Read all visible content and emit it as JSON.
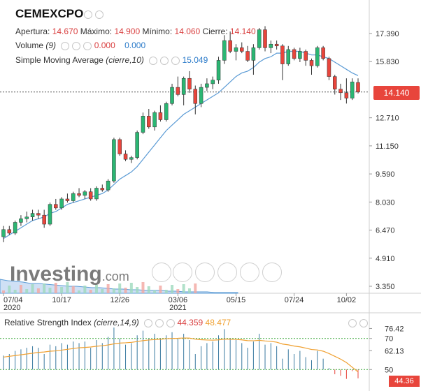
{
  "header": {
    "symbol": "CEMEXCPO",
    "open_label": "Apertura:",
    "open": "14.670",
    "high_label": "Máximo:",
    "high": "14.900",
    "low_label": "Mínimo:",
    "low": "14.060",
    "close_label": "Cierre:",
    "close": "14.140",
    "volume_label": "Volume",
    "volume_param": "(9)",
    "volume_v1": "0.000",
    "volume_v2": "0.000",
    "sma_label": "Simple Moving Average",
    "sma_param": "(cierre,10)",
    "sma_value": "15.049"
  },
  "watermark": {
    "brand": "Investing",
    "suffix": ".com"
  },
  "price_label": "14.140",
  "rsi": {
    "label": "Relative Strength Index",
    "param": "(cierre,14,9)",
    "value": "44.359",
    "signal": "48.477",
    "axis_label": "44.36"
  },
  "colors": {
    "up": "#2bb673",
    "down": "#e8453c",
    "sma": "#5b9bd5",
    "rsi_line": "#f0a030",
    "grid_dash": "#3aa83a"
  },
  "icons": [
    "eye-icon",
    "gear-icon",
    "close-icon",
    "chevron-down-icon"
  ],
  "chart_data": {
    "type": "candlestick",
    "y_ticks": [
      "17.390",
      "15.830",
      "12.710",
      "11.150",
      "9.590",
      "8.030",
      "6.470",
      "4.910",
      "3.350"
    ],
    "ylim": [
      3.35,
      17.39
    ],
    "x_ticks": [
      {
        "label": "07/04",
        "year": "2020"
      },
      {
        "label": "10/17",
        "year": ""
      },
      {
        "label": "12/26",
        "year": ""
      },
      {
        "label": "03/06",
        "year": "2021"
      },
      {
        "label": "05/15",
        "year": ""
      },
      {
        "label": "07/24",
        "year": ""
      },
      {
        "label": "10/02",
        "year": ""
      }
    ],
    "candles": [
      [
        6.1,
        6.7,
        5.8,
        6.5
      ],
      [
        6.5,
        6.7,
        6.2,
        6.3
      ],
      [
        6.3,
        7.0,
        6.2,
        6.9
      ],
      [
        6.9,
        7.3,
        6.7,
        7.1
      ],
      [
        7.1,
        7.5,
        6.9,
        7.2
      ],
      [
        7.2,
        7.6,
        7.0,
        7.4
      ],
      [
        7.4,
        7.6,
        7.1,
        7.3
      ],
      [
        7.3,
        7.6,
        6.6,
        6.8
      ],
      [
        6.8,
        8.0,
        6.7,
        7.9
      ],
      [
        7.9,
        8.2,
        7.6,
        7.7
      ],
      [
        7.7,
        8.3,
        7.6,
        8.2
      ],
      [
        8.2,
        8.5,
        8.0,
        8.1
      ],
      [
        8.1,
        8.6,
        8.0,
        8.5
      ],
      [
        8.5,
        8.8,
        8.3,
        8.4
      ],
      [
        8.4,
        8.7,
        8.2,
        8.6
      ],
      [
        8.6,
        8.8,
        8.1,
        8.2
      ],
      [
        8.2,
        8.9,
        8.1,
        8.8
      ],
      [
        8.8,
        9.0,
        8.6,
        8.7
      ],
      [
        8.7,
        9.3,
        8.6,
        9.2
      ],
      [
        9.2,
        11.6,
        9.1,
        11.5
      ],
      [
        11.5,
        11.6,
        10.6,
        10.7
      ],
      [
        10.7,
        10.9,
        10.3,
        10.4
      ],
      [
        10.4,
        10.6,
        10.2,
        10.5
      ],
      [
        10.5,
        12.0,
        10.4,
        11.9
      ],
      [
        11.9,
        13.0,
        11.8,
        12.8
      ],
      [
        12.8,
        13.2,
        12.1,
        12.2
      ],
      [
        12.2,
        13.1,
        12.0,
        13.0
      ],
      [
        13.0,
        13.4,
        12.5,
        12.6
      ],
      [
        12.6,
        13.6,
        12.5,
        13.5
      ],
      [
        13.5,
        14.6,
        13.4,
        14.4
      ],
      [
        14.4,
        15.0,
        13.9,
        14.0
      ],
      [
        14.0,
        15.0,
        13.4,
        14.9
      ],
      [
        14.9,
        15.3,
        14.1,
        14.3
      ],
      [
        14.3,
        14.5,
        12.9,
        13.5
      ],
      [
        13.5,
        14.6,
        13.3,
        14.4
      ],
      [
        14.4,
        14.9,
        14.2,
        14.6
      ],
      [
        14.6,
        15.0,
        14.3,
        14.8
      ],
      [
        14.8,
        16.1,
        14.6,
        15.9
      ],
      [
        15.9,
        17.3,
        15.7,
        17.0
      ],
      [
        17.0,
        17.5,
        16.3,
        16.4
      ],
      [
        16.4,
        16.8,
        15.9,
        16.6
      ],
      [
        16.6,
        16.9,
        16.3,
        16.4
      ],
      [
        16.4,
        16.7,
        15.8,
        15.9
      ],
      [
        15.9,
        16.8,
        15.1,
        16.6
      ],
      [
        16.6,
        17.7,
        16.5,
        17.6
      ],
      [
        17.6,
        17.8,
        16.4,
        16.6
      ],
      [
        16.6,
        17.0,
        16.3,
        16.8
      ],
      [
        16.8,
        17.0,
        16.5,
        16.7
      ],
      [
        16.7,
        16.8,
        14.8,
        15.7
      ],
      [
        15.7,
        16.7,
        15.6,
        16.5
      ],
      [
        16.5,
        16.6,
        15.9,
        16.0
      ],
      [
        16.0,
        16.6,
        15.8,
        16.4
      ],
      [
        16.4,
        16.5,
        15.6,
        15.9
      ],
      [
        15.9,
        16.0,
        15.1,
        15.6
      ],
      [
        15.6,
        16.7,
        15.5,
        16.6
      ],
      [
        16.6,
        16.7,
        15.9,
        16.0
      ],
      [
        16.0,
        16.1,
        14.8,
        15.0
      ],
      [
        15.0,
        15.1,
        14.0,
        14.3
      ],
      [
        14.3,
        14.6,
        13.7,
        14.1
      ],
      [
        14.1,
        14.9,
        13.5,
        13.8
      ],
      [
        13.8,
        14.9,
        13.7,
        14.7
      ],
      [
        14.67,
        14.9,
        14.06,
        14.14
      ]
    ],
    "sma": [
      6.0,
      6.2,
      6.4,
      6.6,
      6.8,
      7.0,
      7.1,
      7.2,
      7.4,
      7.5,
      7.7,
      7.9,
      8.0,
      8.1,
      8.2,
      8.3,
      8.4,
      8.5,
      8.7,
      9.0,
      9.3,
      9.5,
      9.7,
      10.0,
      10.4,
      10.8,
      11.2,
      11.6,
      12.0,
      12.3,
      12.6,
      12.9,
      13.1,
      13.3,
      13.5,
      13.7,
      13.9,
      14.1,
      14.4,
      14.7,
      15.0,
      15.2,
      15.3,
      15.5,
      15.8,
      16.0,
      16.1,
      16.3,
      16.3,
      16.4,
      16.4,
      16.4,
      16.3,
      16.2,
      16.2,
      16.1,
      16.0,
      15.8,
      15.6,
      15.4,
      15.2,
      15.05
    ],
    "volume_area": [
      1.0,
      0.9,
      0.85,
      0.8,
      0.7,
      0.7,
      0.65,
      0.6,
      0.55,
      0.5,
      0.5,
      0.45,
      0.4,
      0.4,
      0.35,
      0.3,
      0.3,
      0.25,
      0.25,
      0.2,
      0.2,
      0.2,
      0.15,
      0.15,
      0.1,
      0.1,
      0.1,
      0.1,
      0.05,
      0.05,
      0.05,
      0.05
    ],
    "rsi_ticks": [
      "76.42",
      "70",
      "62.13",
      "50"
    ],
    "rsi_ylim": [
      38,
      82
    ],
    "rsi_levels": [
      70,
      50
    ],
    "rsi": [
      59,
      60,
      62,
      63,
      64,
      65,
      64,
      60,
      66,
      65,
      67,
      66,
      68,
      67,
      68,
      64,
      69,
      67,
      71,
      77,
      70,
      66,
      67,
      72,
      75,
      70,
      73,
      70,
      72,
      74,
      70,
      73,
      69,
      60,
      65,
      67,
      68,
      72,
      76,
      70,
      69,
      67,
      64,
      68,
      73,
      66,
      67,
      65,
      57,
      63,
      60,
      62,
      58,
      56,
      62,
      57,
      51,
      47,
      46,
      44,
      49,
      44.36
    ],
    "rsi_signal": [
      58,
      58.5,
      59,
      59.5,
      60,
      60.5,
      61,
      61.3,
      61.8,
      62,
      62.5,
      63,
      63.5,
      64,
      64.2,
      64.5,
      65,
      65.3,
      65.8,
      66.5,
      67,
      67.2,
      67.5,
      68,
      68.6,
      69,
      69.3,
      69.5,
      69.8,
      70,
      70.1,
      70.3,
      70.2,
      69.5,
      69.2,
      69,
      68.9,
      69.1,
      69.6,
      69.5,
      69.4,
      69.1,
      68.6,
      68.5,
      68.8,
      68.4,
      68.1,
      67.6,
      66.4,
      65.9,
      65.1,
      64.6,
      63.8,
      62.9,
      62.6,
      61.8,
      60.3,
      58.5,
      56.7,
      54.5,
      51.5,
      48.477
    ]
  }
}
